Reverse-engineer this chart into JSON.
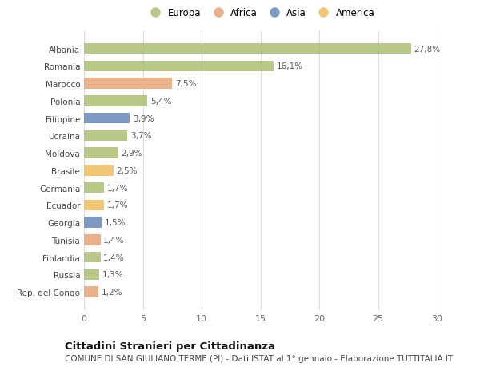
{
  "countries": [
    "Albania",
    "Romania",
    "Marocco",
    "Polonia",
    "Filippine",
    "Ucraina",
    "Moldova",
    "Brasile",
    "Germania",
    "Ecuador",
    "Georgia",
    "Tunisia",
    "Finlandia",
    "Russia",
    "Rep. del Congo"
  ],
  "values": [
    27.8,
    16.1,
    7.5,
    5.4,
    3.9,
    3.7,
    2.9,
    2.5,
    1.7,
    1.7,
    1.5,
    1.4,
    1.4,
    1.3,
    1.2
  ],
  "labels": [
    "27,8%",
    "16,1%",
    "7,5%",
    "5,4%",
    "3,9%",
    "3,7%",
    "2,9%",
    "2,5%",
    "1,7%",
    "1,7%",
    "1,5%",
    "1,4%",
    "1,4%",
    "1,3%",
    "1,2%"
  ],
  "continents": [
    "Europa",
    "Europa",
    "Africa",
    "Europa",
    "Asia",
    "Europa",
    "Europa",
    "America",
    "Europa",
    "America",
    "Asia",
    "Africa",
    "Europa",
    "Europa",
    "Africa"
  ],
  "colors": {
    "Europa": "#adc178",
    "Africa": "#e8a87c",
    "Asia": "#6b8cba",
    "America": "#f0c060"
  },
  "legend_order": [
    "Europa",
    "Africa",
    "Asia",
    "America"
  ],
  "background_color": "#ffffff",
  "grid_color": "#dddddd",
  "xlim": [
    0,
    30
  ],
  "xticks": [
    0,
    5,
    10,
    15,
    20,
    25,
    30
  ],
  "title": "Cittadini Stranieri per Cittadinanza",
  "subtitle": "COMUNE DI SAN GIULIANO TERME (PI) - Dati ISTAT al 1° gennaio - Elaborazione TUTTITALIA.IT",
  "title_fontsize": 9.5,
  "subtitle_fontsize": 7.5,
  "label_fontsize": 7.5,
  "ytick_fontsize": 7.5,
  "xtick_fontsize": 8.0,
  "legend_fontsize": 8.5
}
